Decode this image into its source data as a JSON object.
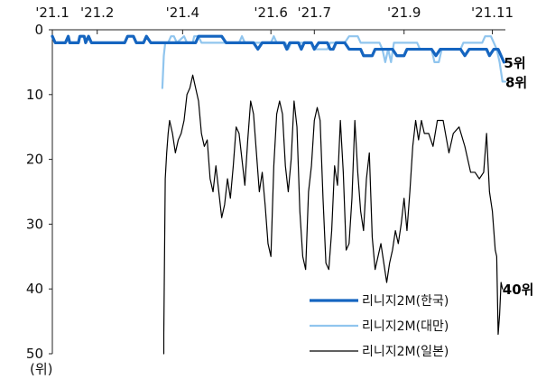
{
  "chart_data": {
    "type": "line",
    "y_unit_label": "(위)",
    "x_tick_labels": [
      "'21.1",
      "'21.2",
      "'21.4",
      "'21.6",
      "'21.7",
      "'21.9",
      "'21.11"
    ],
    "x_tick_dates": [
      "2021-01-01",
      "2021-02-01",
      "2021-04-01",
      "2021-06-01",
      "2021-07-01",
      "2021-09-01",
      "2021-11-01"
    ],
    "xlim": [
      "2021-01-01",
      "2021-11-10"
    ],
    "y_ticks": [
      0,
      10,
      20,
      30,
      40,
      50
    ],
    "ylim": [
      50,
      0
    ],
    "y_inverted": true,
    "grid": false,
    "legend_position": "bottom-right",
    "end_labels": [
      {
        "series": 0,
        "text": "5위",
        "value": 5
      },
      {
        "series": 1,
        "text": "8위",
        "value": 8
      },
      {
        "series": 2,
        "text": "40위",
        "value": 40
      }
    ],
    "series": [
      {
        "name": "리니지2M(한국)",
        "color": "#1565c0",
        "width": 3.2,
        "points": [
          [
            "2021-01-01",
            1
          ],
          [
            "2021-01-03",
            2
          ],
          [
            "2021-01-10",
            2
          ],
          [
            "2021-01-12",
            1
          ],
          [
            "2021-01-13",
            2
          ],
          [
            "2021-01-19",
            2
          ],
          [
            "2021-01-20",
            1
          ],
          [
            "2021-01-23",
            1
          ],
          [
            "2021-01-24",
            2
          ],
          [
            "2021-01-26",
            1
          ],
          [
            "2021-01-28",
            2
          ],
          [
            "2021-02-20",
            2
          ],
          [
            "2021-02-22",
            1
          ],
          [
            "2021-02-26",
            1
          ],
          [
            "2021-02-28",
            2
          ],
          [
            "2021-03-05",
            2
          ],
          [
            "2021-03-07",
            1
          ],
          [
            "2021-03-10",
            2
          ],
          [
            "2021-04-10",
            2
          ],
          [
            "2021-04-12",
            1
          ],
          [
            "2021-04-28",
            1
          ],
          [
            "2021-05-01",
            2
          ],
          [
            "2021-05-20",
            2
          ],
          [
            "2021-05-23",
            3
          ],
          [
            "2021-05-26",
            2
          ],
          [
            "2021-06-10",
            2
          ],
          [
            "2021-06-12",
            3
          ],
          [
            "2021-06-14",
            2
          ],
          [
            "2021-06-20",
            2
          ],
          [
            "2021-06-22",
            3
          ],
          [
            "2021-06-24",
            2
          ],
          [
            "2021-06-29",
            2
          ],
          [
            "2021-07-01",
            3
          ],
          [
            "2021-07-04",
            2
          ],
          [
            "2021-07-10",
            2
          ],
          [
            "2021-07-12",
            3
          ],
          [
            "2021-07-14",
            3
          ],
          [
            "2021-07-16",
            2
          ],
          [
            "2021-07-22",
            2
          ],
          [
            "2021-07-25",
            3
          ],
          [
            "2021-08-02",
            3
          ],
          [
            "2021-08-04",
            4
          ],
          [
            "2021-08-10",
            4
          ],
          [
            "2021-08-12",
            3
          ],
          [
            "2021-08-24",
            3
          ],
          [
            "2021-08-27",
            4
          ],
          [
            "2021-09-01",
            4
          ],
          [
            "2021-09-03",
            3
          ],
          [
            "2021-09-20",
            3
          ],
          [
            "2021-09-23",
            4
          ],
          [
            "2021-09-26",
            3
          ],
          [
            "2021-10-10",
            3
          ],
          [
            "2021-10-13",
            4
          ],
          [
            "2021-10-16",
            3
          ],
          [
            "2021-10-28",
            3
          ],
          [
            "2021-10-30",
            4
          ],
          [
            "2021-11-02",
            3
          ],
          [
            "2021-11-05",
            3
          ],
          [
            "2021-11-07",
            4
          ],
          [
            "2021-11-09",
            5
          ]
        ]
      },
      {
        "name": "리니지2M(대만)",
        "color": "#90c5ee",
        "width": 2.2,
        "points": [
          [
            "2021-03-18",
            9
          ],
          [
            "2021-03-19",
            4
          ],
          [
            "2021-03-20",
            2
          ],
          [
            "2021-03-22",
            2
          ],
          [
            "2021-03-24",
            1
          ],
          [
            "2021-03-26",
            1
          ],
          [
            "2021-03-28",
            2
          ],
          [
            "2021-04-02",
            1
          ],
          [
            "2021-04-04",
            2
          ],
          [
            "2021-04-08",
            2
          ],
          [
            "2021-04-09",
            1
          ],
          [
            "2021-04-12",
            1
          ],
          [
            "2021-04-14",
            2
          ],
          [
            "2021-05-10",
            2
          ],
          [
            "2021-05-12",
            1
          ],
          [
            "2021-05-14",
            2
          ],
          [
            "2021-06-01",
            2
          ],
          [
            "2021-06-03",
            1
          ],
          [
            "2021-06-05",
            2
          ],
          [
            "2021-06-11",
            2
          ],
          [
            "2021-06-13",
            3
          ],
          [
            "2021-06-15",
            2
          ],
          [
            "2021-06-29",
            2
          ],
          [
            "2021-07-01",
            3
          ],
          [
            "2021-07-10",
            3
          ],
          [
            "2021-07-12",
            2
          ],
          [
            "2021-07-22",
            2
          ],
          [
            "2021-07-25",
            1
          ],
          [
            "2021-07-31",
            1
          ],
          [
            "2021-08-02",
            2
          ],
          [
            "2021-08-15",
            2
          ],
          [
            "2021-08-17",
            3
          ],
          [
            "2021-08-19",
            5
          ],
          [
            "2021-08-21",
            3
          ],
          [
            "2021-08-23",
            5
          ],
          [
            "2021-08-25",
            2
          ],
          [
            "2021-09-10",
            2
          ],
          [
            "2021-09-12",
            3
          ],
          [
            "2021-09-20",
            3
          ],
          [
            "2021-09-22",
            5
          ],
          [
            "2021-09-25",
            5
          ],
          [
            "2021-09-27",
            3
          ],
          [
            "2021-10-10",
            3
          ],
          [
            "2021-10-12",
            2
          ],
          [
            "2021-10-25",
            2
          ],
          [
            "2021-10-27",
            1
          ],
          [
            "2021-10-31",
            1
          ],
          [
            "2021-11-02",
            2
          ],
          [
            "2021-11-04",
            3
          ],
          [
            "2021-11-06",
            5
          ],
          [
            "2021-11-08",
            8
          ],
          [
            "2021-11-10",
            8
          ]
        ]
      },
      {
        "name": "리니지2M(일본)",
        "color": "#000000",
        "width": 1.2,
        "points": [
          [
            "2021-03-19",
            50
          ],
          [
            "2021-03-19",
            47
          ],
          [
            "2021-03-20",
            23
          ],
          [
            "2021-03-21",
            19
          ],
          [
            "2021-03-22",
            16
          ],
          [
            "2021-03-23",
            14
          ],
          [
            "2021-03-25",
            16
          ],
          [
            "2021-03-27",
            19
          ],
          [
            "2021-03-29",
            17
          ],
          [
            "2021-03-31",
            16
          ],
          [
            "2021-04-02",
            14
          ],
          [
            "2021-04-04",
            10
          ],
          [
            "2021-04-06",
            9
          ],
          [
            "2021-04-08",
            7
          ],
          [
            "2021-04-10",
            9
          ],
          [
            "2021-04-12",
            11
          ],
          [
            "2021-04-14",
            16
          ],
          [
            "2021-04-16",
            18
          ],
          [
            "2021-04-18",
            17
          ],
          [
            "2021-04-20",
            23
          ],
          [
            "2021-04-22",
            25
          ],
          [
            "2021-04-24",
            21
          ],
          [
            "2021-04-26",
            25
          ],
          [
            "2021-04-28",
            29
          ],
          [
            "2021-04-30",
            27
          ],
          [
            "2021-05-02",
            23
          ],
          [
            "2021-05-04",
            26
          ],
          [
            "2021-05-06",
            21
          ],
          [
            "2021-05-08",
            15
          ],
          [
            "2021-05-10",
            16
          ],
          [
            "2021-05-12",
            20
          ],
          [
            "2021-05-14",
            24
          ],
          [
            "2021-05-16",
            17
          ],
          [
            "2021-05-18",
            11
          ],
          [
            "2021-05-20",
            13
          ],
          [
            "2021-05-22",
            19
          ],
          [
            "2021-05-24",
            25
          ],
          [
            "2021-05-26",
            22
          ],
          [
            "2021-05-28",
            27
          ],
          [
            "2021-05-30",
            33
          ],
          [
            "2021-06-01",
            35
          ],
          [
            "2021-06-03",
            21
          ],
          [
            "2021-06-05",
            13
          ],
          [
            "2021-06-07",
            11
          ],
          [
            "2021-06-09",
            13
          ],
          [
            "2021-06-11",
            21
          ],
          [
            "2021-06-13",
            25
          ],
          [
            "2021-06-15",
            20
          ],
          [
            "2021-06-17",
            11
          ],
          [
            "2021-06-19",
            15
          ],
          [
            "2021-06-21",
            28
          ],
          [
            "2021-06-23",
            35
          ],
          [
            "2021-06-25",
            37
          ],
          [
            "2021-06-27",
            25
          ],
          [
            "2021-06-29",
            21
          ],
          [
            "2021-07-01",
            14
          ],
          [
            "2021-07-03",
            12
          ],
          [
            "2021-07-05",
            14
          ],
          [
            "2021-07-07",
            26
          ],
          [
            "2021-07-09",
            36
          ],
          [
            "2021-07-11",
            37
          ],
          [
            "2021-07-13",
            31
          ],
          [
            "2021-07-15",
            21
          ],
          [
            "2021-07-17",
            24
          ],
          [
            "2021-07-19",
            14
          ],
          [
            "2021-07-21",
            22
          ],
          [
            "2021-07-23",
            34
          ],
          [
            "2021-07-25",
            33
          ],
          [
            "2021-07-27",
            26
          ],
          [
            "2021-07-29",
            14
          ],
          [
            "2021-07-31",
            22
          ],
          [
            "2021-08-02",
            28
          ],
          [
            "2021-08-04",
            31
          ],
          [
            "2021-08-06",
            23
          ],
          [
            "2021-08-08",
            19
          ],
          [
            "2021-08-10",
            32
          ],
          [
            "2021-08-12",
            37
          ],
          [
            "2021-08-14",
            35
          ],
          [
            "2021-08-16",
            33
          ],
          [
            "2021-08-18",
            36
          ],
          [
            "2021-08-20",
            39
          ],
          [
            "2021-08-22",
            36
          ],
          [
            "2021-08-24",
            34
          ],
          [
            "2021-08-26",
            31
          ],
          [
            "2021-08-28",
            33
          ],
          [
            "2021-08-30",
            30
          ],
          [
            "2021-09-01",
            26
          ],
          [
            "2021-09-03",
            31
          ],
          [
            "2021-09-05",
            25
          ],
          [
            "2021-09-07",
            18
          ],
          [
            "2021-09-09",
            14
          ],
          [
            "2021-09-11",
            17
          ],
          [
            "2021-09-13",
            14
          ],
          [
            "2021-09-15",
            16
          ],
          [
            "2021-09-18",
            16
          ],
          [
            "2021-09-21",
            18
          ],
          [
            "2021-09-24",
            14
          ],
          [
            "2021-09-28",
            14
          ],
          [
            "2021-10-02",
            19
          ],
          [
            "2021-10-05",
            16
          ],
          [
            "2021-10-09",
            15
          ],
          [
            "2021-10-13",
            18
          ],
          [
            "2021-10-17",
            22
          ],
          [
            "2021-10-20",
            22
          ],
          [
            "2021-10-23",
            23
          ],
          [
            "2021-10-26",
            22
          ],
          [
            "2021-10-28",
            16
          ],
          [
            "2021-10-30",
            25
          ],
          [
            "2021-11-01",
            28
          ],
          [
            "2021-11-02",
            31
          ],
          [
            "2021-11-03",
            34
          ],
          [
            "2021-11-04",
            35
          ],
          [
            "2021-11-05",
            47
          ],
          [
            "2021-11-06",
            44
          ],
          [
            "2021-11-07",
            39
          ],
          [
            "2021-11-08",
            40
          ]
        ]
      }
    ]
  }
}
